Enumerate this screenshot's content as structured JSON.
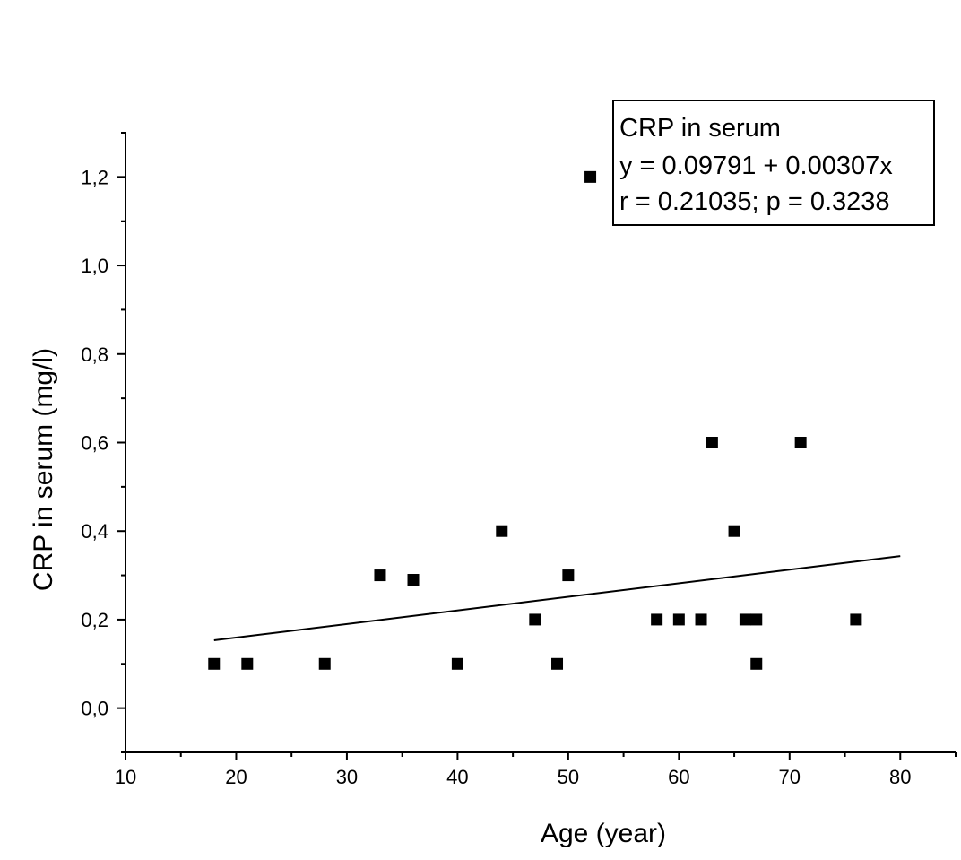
{
  "chart_data": {
    "type": "scatter",
    "xlabel": "Age (year)",
    "ylabel": "CRP in serum (mg/l)",
    "xlim": [
      10,
      85
    ],
    "ylim": [
      -0.1,
      1.3
    ],
    "x_ticks": [
      "10",
      "20",
      "30",
      "40",
      "50",
      "60",
      "70",
      "80"
    ],
    "y_ticks": [
      "0,0",
      "0,2",
      "0,4",
      "0,6",
      "0,8",
      "1,0",
      "1,2"
    ],
    "grid": false,
    "legend_position": "top-right",
    "legend": {
      "lines": [
        "CRP in serum",
        "y = 0.09791 + 0.00307x",
        "r = 0.21035; p = 0.3238"
      ]
    },
    "series": [
      {
        "name": "CRP in serum",
        "marker": "square",
        "color": "#000000",
        "points": [
          {
            "x": 18,
            "y": 0.1
          },
          {
            "x": 21,
            "y": 0.1
          },
          {
            "x": 28,
            "y": 0.1
          },
          {
            "x": 33,
            "y": 0.3
          },
          {
            "x": 36,
            "y": 0.29
          },
          {
            "x": 40,
            "y": 0.1
          },
          {
            "x": 44,
            "y": 0.4
          },
          {
            "x": 47,
            "y": 0.2
          },
          {
            "x": 49,
            "y": 0.1
          },
          {
            "x": 50,
            "y": 0.3
          },
          {
            "x": 52,
            "y": 1.2
          },
          {
            "x": 58,
            "y": 0.2
          },
          {
            "x": 60,
            "y": 0.2
          },
          {
            "x": 62,
            "y": 0.2
          },
          {
            "x": 63,
            "y": 0.6
          },
          {
            "x": 65,
            "y": 0.4
          },
          {
            "x": 66,
            "y": 0.2
          },
          {
            "x": 67,
            "y": 0.2
          },
          {
            "x": 67,
            "y": 0.1
          },
          {
            "x": 71,
            "y": 0.6
          },
          {
            "x": 76,
            "y": 0.2
          }
        ]
      }
    ],
    "fit": {
      "intercept": 0.09791,
      "slope": 0.00307,
      "x_range": [
        18,
        80
      ]
    }
  }
}
